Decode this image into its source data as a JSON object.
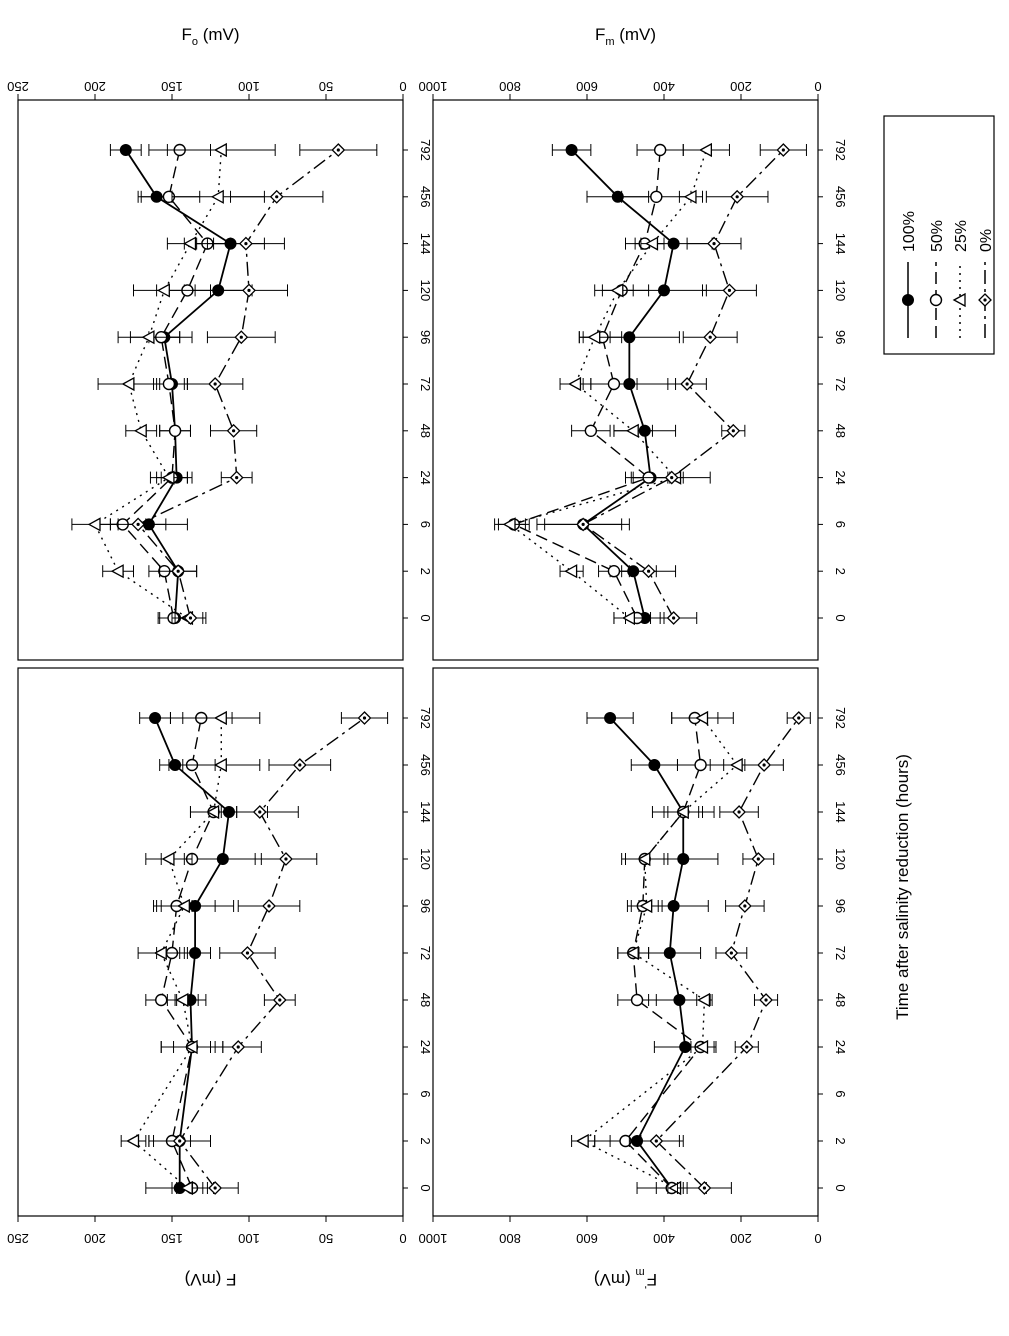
{
  "figure": {
    "shared_xlabel": "Time after salinity reduction (hours)",
    "legend": [
      {
        "label": "100%",
        "marker": "filled-circle",
        "line": "solid"
      },
      {
        "label": "50%",
        "marker": "open-circle",
        "line": "dashed"
      },
      {
        "label": "25%",
        "marker": "open-triangle",
        "line": "dotted"
      },
      {
        "label": "0%",
        "marker": "open-diamond-dot",
        "line": "dash-dot"
      }
    ]
  },
  "chart_data": [
    {
      "id": "Fo",
      "type": "line",
      "ylabel": "F",
      "ylabel_sub": "o",
      "ylabel_unit": " (mV)",
      "ylim": [
        0,
        250
      ],
      "yticks": [
        0,
        50,
        100,
        150,
        200,
        250
      ],
      "categories": [
        "0",
        "2",
        "6",
        "24",
        "48",
        "72",
        "96",
        "120",
        "144",
        "456",
        "792"
      ],
      "series": [
        {
          "name": "100%",
          "values": [
            148,
            146,
            165,
            147,
            148,
            150,
            155,
            120,
            112,
            160,
            180
          ],
          "errors": [
            10,
            12,
            25,
            10,
            10,
            10,
            10,
            22,
            22,
            10,
            10
          ]
        },
        {
          "name": "50%",
          "values": [
            149,
            155,
            182,
            150,
            148,
            152,
            157,
            140,
            127,
            152,
            145
          ],
          "errors": [
            10,
            10,
            15,
            10,
            10,
            10,
            20,
            20,
            15,
            20,
            20
          ]
        },
        {
          "name": "25%",
          "values": [
            140,
            185,
            200,
            152,
            170,
            178,
            165,
            155,
            138,
            120,
            118
          ],
          "errors": [
            10,
            10,
            15,
            12,
            10,
            20,
            20,
            20,
            15,
            30,
            35
          ]
        },
        {
          "name": "0%",
          "values": [
            138,
            146,
            172,
            108,
            110,
            122,
            105,
            100,
            102,
            82,
            42
          ],
          "errors": [
            10,
            12,
            18,
            10,
            15,
            18,
            22,
            25,
            25,
            30,
            25
          ]
        }
      ]
    },
    {
      "id": "Fm",
      "type": "line",
      "ylabel": "F",
      "ylabel_sub": "m",
      "ylabel_unit": " (mV)",
      "ylim": [
        0,
        1000
      ],
      "yticks": [
        0,
        200,
        400,
        600,
        800,
        1000
      ],
      "categories": [
        "0",
        "2",
        "6",
        "24",
        "48",
        "72",
        "96",
        "120",
        "144",
        "456",
        "792"
      ],
      "series": [
        {
          "name": "100%",
          "values": [
            450,
            480,
            610,
            435,
            450,
            490,
            490,
            400,
            375,
            520,
            640
          ],
          "errors": [
            50,
            60,
            120,
            50,
            80,
            120,
            130,
            110,
            100,
            80,
            50
          ]
        },
        {
          "name": "50%",
          "values": [
            470,
            530,
            790,
            440,
            590,
            530,
            560,
            510,
            450,
            420,
            410
          ],
          "errors": [
            60,
            40,
            40,
            60,
            50,
            60,
            50,
            70,
            50,
            90,
            60
          ]
        },
        {
          "name": "25%",
          "values": [
            490,
            640,
            800,
            370,
            480,
            630,
            580,
            520,
            430,
            330,
            290
          ],
          "errors": [
            40,
            30,
            40,
            20,
            50,
            40,
            40,
            40,
            30,
            30,
            60
          ]
        },
        {
          "name": "0%",
          "values": [
            375,
            440,
            610,
            380,
            220,
            340,
            280,
            230,
            270,
            210,
            90
          ],
          "errors": [
            60,
            70,
            100,
            100,
            30,
            50,
            70,
            70,
            70,
            80,
            60
          ]
        }
      ]
    },
    {
      "id": "F",
      "type": "line",
      "ylabel": "F",
      "ylabel_sub": "",
      "ylabel_unit": " (mV)",
      "ylim": [
        0,
        250
      ],
      "yticks": [
        0,
        50,
        100,
        150,
        200,
        250
      ],
      "categories": [
        "0",
        "2",
        "6",
        "24",
        "48",
        "72",
        "96",
        "120",
        "144",
        "456",
        "792"
      ],
      "series": [
        {
          "name": "100%",
          "values": [
            145,
            145,
            null,
            137,
            138,
            135,
            135,
            117,
            113,
            148,
            161
          ],
          "errors": [
            22,
            20,
            0,
            20,
            10,
            10,
            25,
            25,
            25,
            10,
            10
          ]
        },
        {
          "name": "50%",
          "values": [
            137,
            150,
            null,
            137,
            157,
            150,
            147,
            137,
            123,
            137,
            131
          ],
          "errors": [
            10,
            12,
            0,
            12,
            10,
            10,
            10,
            20,
            15,
            15,
            20
          ]
        },
        {
          "name": "25%",
          "values": [
            140,
            175,
            null,
            137,
            143,
            157,
            142,
            152,
            123,
            118,
            118
          ],
          "errors": [
            10,
            8,
            0,
            20,
            10,
            15,
            20,
            15,
            15,
            25,
            25
          ]
        },
        {
          "name": "0%",
          "values": [
            122,
            145,
            null,
            107,
            80,
            101,
            87,
            76,
            93,
            67,
            25
          ],
          "errors": [
            15,
            20,
            0,
            15,
            10,
            18,
            20,
            20,
            25,
            20,
            15
          ]
        }
      ]
    },
    {
      "id": "Fm-prime",
      "type": "line",
      "ylabel": "F",
      "ylabel_sub": "m",
      "ylabel_sup": "'",
      "ylabel_unit": " (mV)",
      "ylim": [
        0,
        1000
      ],
      "yticks": [
        0,
        200,
        400,
        600,
        800,
        1000
      ],
      "categories": [
        "0",
        "2",
        "6",
        "24",
        "48",
        "72",
        "96",
        "120",
        "144",
        "456",
        "792"
      ],
      "series": [
        {
          "name": "100%",
          "values": [
            380,
            470,
            null,
            345,
            360,
            385,
            375,
            350,
            350,
            425,
            540
          ],
          "errors": [
            90,
            110,
            0,
            80,
            80,
            80,
            90,
            90,
            80,
            60,
            60
          ]
        },
        {
          "name": "50%",
          "values": [
            380,
            500,
            null,
            305,
            470,
            480,
            455,
            450,
            350,
            305,
            320
          ],
          "errors": [
            40,
            40,
            0,
            40,
            50,
            40,
            40,
            50,
            40,
            60,
            60
          ]
        },
        {
          "name": "25%",
          "values": [
            370,
            610,
            null,
            300,
            295,
            480,
            445,
            450,
            350,
            210,
            300
          ],
          "errors": [
            20,
            30,
            0,
            30,
            20,
            40,
            40,
            60,
            50,
            70,
            80
          ]
        },
        {
          "name": "0%",
          "values": [
            295,
            420,
            null,
            185,
            135,
            225,
            190,
            155,
            205,
            140,
            50
          ],
          "errors": [
            70,
            70,
            0,
            30,
            30,
            40,
            50,
            40,
            50,
            50,
            30
          ]
        }
      ]
    }
  ]
}
